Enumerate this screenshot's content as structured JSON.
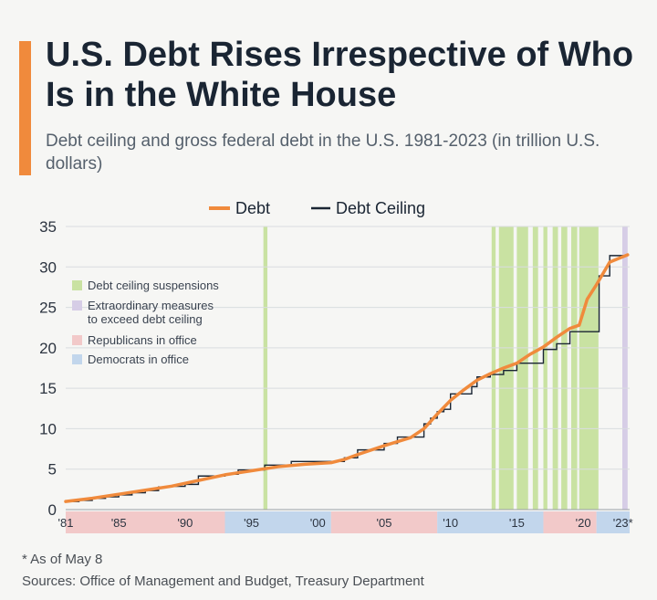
{
  "title": "U.S. Debt Rises Irrespective of Who Is in the White House",
  "subtitle": "Debt ceiling and gross federal debt in the U.S. 1981-2023 (in trillion U.S. dollars)",
  "footnote": "* As of May 8",
  "sources": "Sources: Office of Management and Budget, Treasury Department",
  "colors": {
    "accent": "#f08a3c",
    "debt": "#f08a3c",
    "ceiling": "#1a2533",
    "suspension": "#c9e2a2",
    "extraordinary": "#d6cde6",
    "republican": "#f2c9c9",
    "democrat": "#c2d6ec",
    "grid": "#d9dcdf",
    "text": "#1a2533",
    "axis_text": "#2c3440"
  },
  "chart_data": {
    "type": "line",
    "title": "",
    "xlabel": "",
    "ylabel": "",
    "xlim": [
      1981,
      2023.5
    ],
    "ylim": [
      0,
      35
    ],
    "yticks": [
      0,
      5,
      10,
      15,
      20,
      25,
      30,
      35
    ],
    "ytick_labels": [
      "0",
      "5",
      "10",
      "15",
      "20",
      "25",
      "30",
      "35"
    ],
    "xticks": [
      1981,
      1985,
      1990,
      1995,
      2000,
      2005,
      2010,
      2015,
      2020,
      2023
    ],
    "xtick_labels": [
      "'81",
      "'85",
      "'90",
      "'95",
      "'00",
      "'05",
      "'10",
      "'15",
      "'20",
      "'23*"
    ],
    "grid": true,
    "legend_position": "top-center",
    "series": [
      {
        "name": "Debt",
        "style": "line",
        "x": [
          1981,
          1983,
          1985,
          1987,
          1989,
          1991,
          1993,
          1995,
          1997,
          1999,
          2001,
          2002,
          2003,
          2005,
          2007,
          2008,
          2009,
          2010,
          2011,
          2012,
          2013,
          2014,
          2015,
          2016,
          2017,
          2018,
          2019,
          2019.7,
          2020.3,
          2021,
          2022,
          2023.35
        ],
        "values": [
          1.0,
          1.4,
          1.9,
          2.4,
          2.9,
          3.6,
          4.3,
          4.8,
          5.3,
          5.6,
          5.8,
          6.2,
          6.8,
          7.9,
          8.9,
          10.0,
          11.8,
          13.5,
          14.8,
          16.0,
          16.8,
          17.5,
          18.1,
          19.2,
          20.1,
          21.3,
          22.4,
          22.8,
          26.0,
          27.8,
          30.6,
          31.5
        ]
      },
      {
        "name": "Debt Ceiling",
        "style": "step",
        "x": [
          1981,
          1982,
          1983,
          1984,
          1985,
          1986,
          1987,
          1988,
          1989,
          1990,
          1991,
          1993,
          1994,
          1996,
          1998,
          2002,
          2003,
          2004,
          2005,
          2006,
          2007,
          2008,
          2008.5,
          2009,
          2009.5,
          2010,
          2011,
          2011.6,
          2012,
          2013,
          2014,
          2015,
          2016,
          2017,
          2018,
          2019,
          2021.2,
          2021.8,
          2022,
          2023.35
        ],
        "values": [
          0.99,
          1.14,
          1.39,
          1.57,
          1.82,
          2.08,
          2.35,
          2.8,
          2.87,
          3.12,
          4.15,
          4.37,
          4.9,
          5.5,
          5.95,
          6.4,
          7.38,
          7.38,
          8.18,
          8.97,
          8.97,
          10.6,
          11.3,
          12.1,
          12.4,
          14.3,
          14.3,
          15.2,
          16.4,
          16.7,
          17.2,
          18.1,
          18.1,
          19.8,
          20.5,
          21.99,
          28.9,
          28.9,
          31.4,
          31.4
        ]
      }
    ],
    "annotations_legend": [
      "Debt ceiling suspensions",
      "Extraordinary measures to exceed debt ceiling",
      "Republicans in office",
      "Democrats in office"
    ],
    "suspension_periods": [
      [
        1995.9,
        1996.2
      ],
      [
        2013.1,
        2013.4
      ],
      [
        2013.65,
        2014.75
      ],
      [
        2015.0,
        2015.85
      ],
      [
        2016.2,
        2016.6
      ],
      [
        2017.0,
        2017.3
      ],
      [
        2017.7,
        2018.1
      ],
      [
        2018.35,
        2018.8
      ],
      [
        2019.1,
        2019.55
      ],
      [
        2019.7,
        2021.15
      ]
    ],
    "extraordinary_period": [
      2022.95,
      2023.35
    ],
    "party_periods": [
      {
        "party": "republican",
        "start": 1981,
        "end": 1993
      },
      {
        "party": "democrat",
        "start": 1993,
        "end": 2001
      },
      {
        "party": "republican",
        "start": 2001,
        "end": 2009
      },
      {
        "party": "democrat",
        "start": 2009,
        "end": 2017
      },
      {
        "party": "republican",
        "start": 2017,
        "end": 2021
      },
      {
        "party": "democrat",
        "start": 2021,
        "end": 2023.5
      }
    ]
  }
}
